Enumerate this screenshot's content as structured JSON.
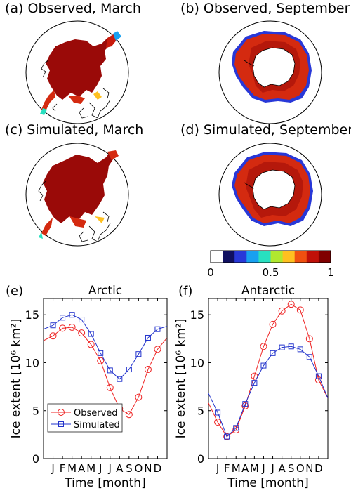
{
  "maps": [
    {
      "title": "(a) Observed, March"
    },
    {
      "title": "(b) Observed, September"
    },
    {
      "title": "(c) Simulated, March"
    },
    {
      "title": "(d) Simulated, September"
    }
  ],
  "colorbar": {
    "ticks": [
      {
        "value": 0,
        "label": "0"
      },
      {
        "value": 0.5,
        "label": "0.5"
      },
      {
        "value": 1,
        "label": "1"
      }
    ],
    "colors": [
      "#ffffff",
      "#101060",
      "#2838d8",
      "#18a0f0",
      "#28e0c0",
      "#b0e830",
      "#ffc020",
      "#f05010",
      "#c01008",
      "#800000"
    ]
  },
  "colors": {
    "observed": "#ee2222",
    "simulated": "#2233cc",
    "ice_dark": "#9a0a08",
    "ice_mid": "#d42a10"
  },
  "chart_data": [
    {
      "type": "line",
      "panel_label": "(e)",
      "title": "Arctic",
      "xlabel": "Time [month]",
      "ylabel": "Ice extent [10⁶ km²]",
      "ylim": [
        0,
        16.7
      ],
      "yticks": [
        0,
        5,
        10,
        15
      ],
      "categories": [
        "J",
        "F",
        "M",
        "A",
        "M",
        "J",
        "J",
        "A",
        "S",
        "O",
        "N",
        "D"
      ],
      "legend_position": "bottom-left",
      "series": [
        {
          "name": "Observed",
          "color": "#ee2222",
          "marker": "circle",
          "values": [
            12.8,
            13.6,
            13.7,
            13.1,
            11.9,
            10.2,
            7.4,
            5.2,
            4.6,
            6.4,
            9.3,
            11.4
          ]
        },
        {
          "name": "Simulated",
          "color": "#2233cc",
          "marker": "square",
          "values": [
            13.9,
            14.7,
            15.0,
            14.5,
            13.0,
            11.0,
            9.2,
            8.3,
            9.3,
            10.9,
            12.6,
            13.5
          ]
        }
      ],
      "edges": {
        "observed": [
          12.3,
          12.6
        ],
        "simulated": [
          13.5,
          13.8
        ]
      }
    },
    {
      "type": "line",
      "panel_label": "(f)",
      "title": "Antarctic",
      "xlabel": "Time [month]",
      "ylabel": "Ice extent [10⁶ km²]",
      "ylim": [
        0,
        16.7
      ],
      "yticks": [
        0,
        5,
        10,
        15
      ],
      "categories": [
        "J",
        "F",
        "M",
        "A",
        "M",
        "J",
        "J",
        "A",
        "S",
        "O",
        "N",
        "D"
      ],
      "series": [
        {
          "name": "Observed",
          "color": "#ee2222",
          "marker": "circle",
          "values": [
            3.8,
            2.3,
            3.0,
            5.5,
            8.6,
            11.7,
            14.0,
            15.4,
            16.1,
            15.5,
            12.5,
            8.2
          ]
        },
        {
          "name": "Simulated",
          "color": "#2233cc",
          "marker": "square",
          "values": [
            4.8,
            2.3,
            3.2,
            5.7,
            7.9,
            9.7,
            11.0,
            11.6,
            11.7,
            11.4,
            10.6,
            8.6
          ]
        }
      ],
      "edges": {
        "observed": [
          5.8,
          6.3
        ],
        "simulated": [
          6.8,
          6.3
        ]
      }
    }
  ]
}
